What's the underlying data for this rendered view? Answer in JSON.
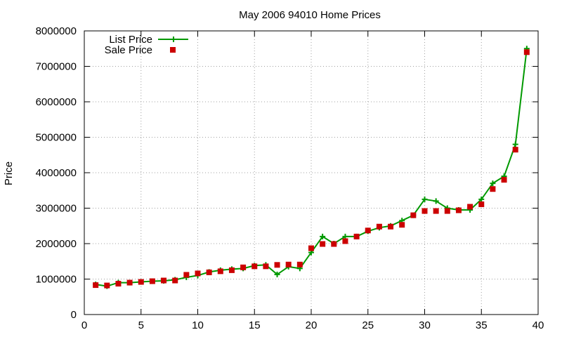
{
  "chart_data": {
    "type": "line",
    "title": "May 2006 94010 Home Prices",
    "xlabel": "",
    "ylabel": "Price",
    "xlim": [
      0,
      40
    ],
    "ylim": [
      0,
      8000000
    ],
    "x_ticks": [
      0,
      5,
      10,
      15,
      20,
      25,
      30,
      35,
      40
    ],
    "x_tick_labels": [
      "0",
      "5",
      "10",
      "15",
      "20",
      "25",
      "30",
      "35",
      "40"
    ],
    "y_ticks": [
      0,
      1000000,
      2000000,
      3000000,
      4000000,
      5000000,
      6000000,
      7000000,
      8000000
    ],
    "y_tick_labels": [
      "0",
      "1000000",
      "2000000",
      "3000000",
      "4000000",
      "5000000",
      "6000000",
      "7000000",
      "8000000"
    ],
    "grid": true,
    "legend_position": "top-left",
    "series": [
      {
        "name": "List Price",
        "style": "line-plus",
        "color": "#009900",
        "x": [
          1,
          2,
          3,
          4,
          5,
          6,
          7,
          8,
          9,
          10,
          11,
          12,
          13,
          14,
          15,
          16,
          17,
          18,
          19,
          20,
          21,
          22,
          23,
          24,
          25,
          26,
          27,
          28,
          29,
          30,
          31,
          32,
          33,
          34,
          35,
          36,
          37,
          38,
          39
        ],
        "values": [
          850000,
          800000,
          900000,
          900000,
          920000,
          940000,
          950000,
          980000,
          1050000,
          1100000,
          1200000,
          1250000,
          1280000,
          1300000,
          1380000,
          1400000,
          1130000,
          1350000,
          1300000,
          1750000,
          2200000,
          2000000,
          2200000,
          2200000,
          2350000,
          2450000,
          2500000,
          2650000,
          2800000,
          3250000,
          3200000,
          3000000,
          2950000,
          2950000,
          3250000,
          3700000,
          3900000,
          4800000,
          7500000
        ]
      },
      {
        "name": "Sale Price",
        "style": "square-markers",
        "color": "#cc0000",
        "x": [
          1,
          2,
          3,
          4,
          5,
          6,
          7,
          8,
          9,
          10,
          11,
          12,
          13,
          14,
          15,
          16,
          17,
          18,
          19,
          20,
          21,
          22,
          23,
          24,
          25,
          26,
          27,
          28,
          29,
          30,
          31,
          32,
          33,
          34,
          35,
          36,
          37,
          38,
          39
        ],
        "values": [
          830000,
          820000,
          870000,
          900000,
          920000,
          940000,
          960000,
          960000,
          1120000,
          1160000,
          1190000,
          1220000,
          1250000,
          1330000,
          1360000,
          1360000,
          1400000,
          1410000,
          1410000,
          1870000,
          1990000,
          1990000,
          2070000,
          2200000,
          2370000,
          2480000,
          2480000,
          2530000,
          2800000,
          2920000,
          2920000,
          2920000,
          2940000,
          3040000,
          3110000,
          3540000,
          3800000,
          4650000,
          7400000
        ]
      }
    ]
  }
}
